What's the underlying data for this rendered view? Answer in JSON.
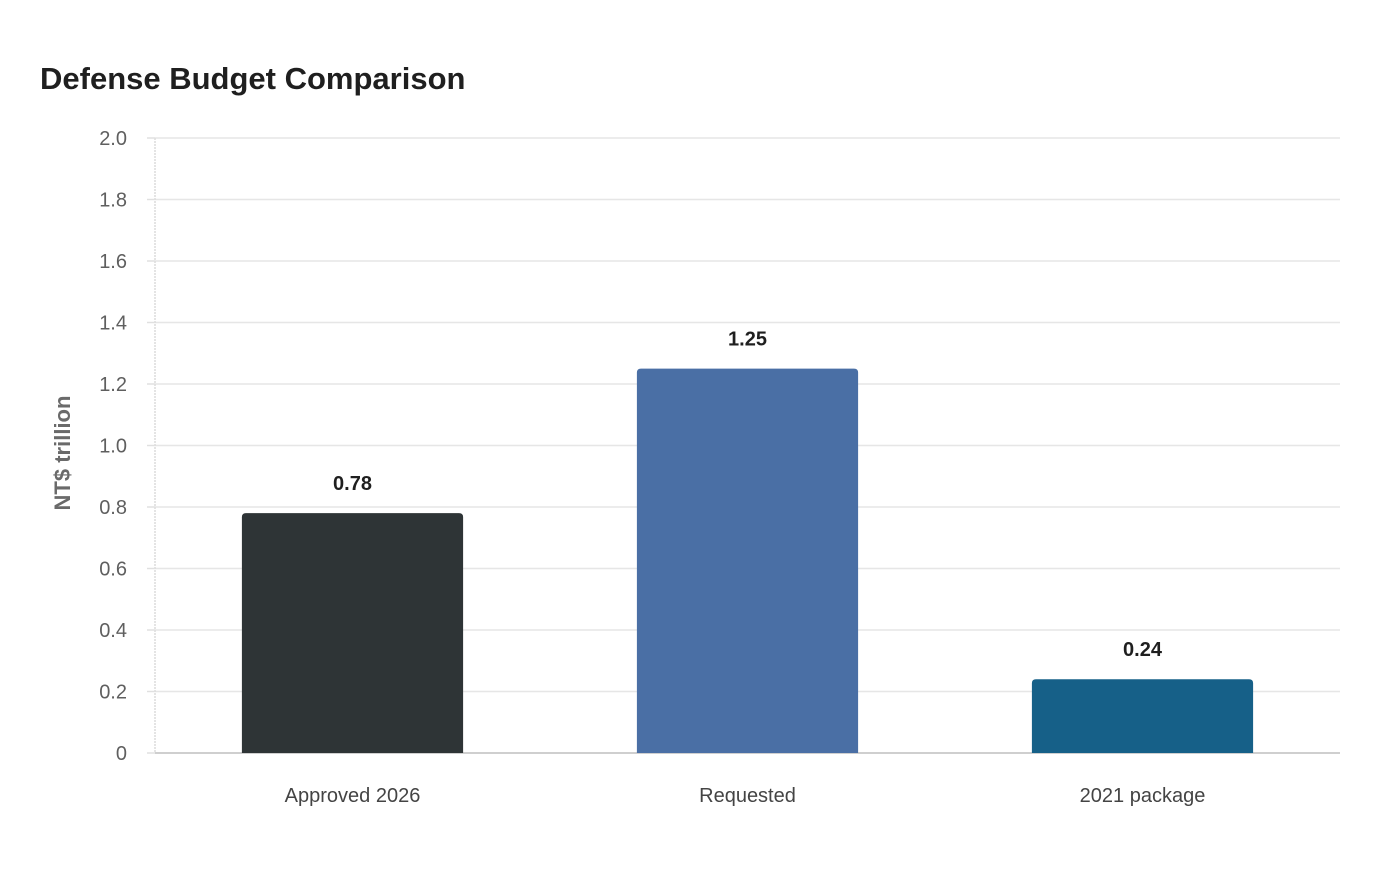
{
  "chart_data": {
    "type": "bar",
    "title": "Defense Budget Comparison",
    "xlabel": "",
    "ylabel": "NT$ trillion",
    "categories": [
      "Approved 2026",
      "Requested",
      "2021 package"
    ],
    "values": [
      0.78,
      1.25,
      0.24
    ],
    "value_labels": [
      "0.78",
      "1.25",
      "0.24"
    ],
    "bar_colors": [
      "#2e3436",
      "#4a6fa5",
      "#166088"
    ],
    "ylim": [
      0,
      2.0
    ],
    "yticks": [
      0,
      0.2,
      0.4,
      0.6,
      0.8,
      1.0,
      1.2,
      1.4,
      1.6,
      1.8,
      2.0
    ],
    "ytick_labels": [
      "0",
      "0.2",
      "0.4",
      "0.6",
      "0.8",
      "1.0",
      "1.2",
      "1.4",
      "1.6",
      "1.8",
      "2.0"
    ],
    "grid": true,
    "legend": "none"
  }
}
